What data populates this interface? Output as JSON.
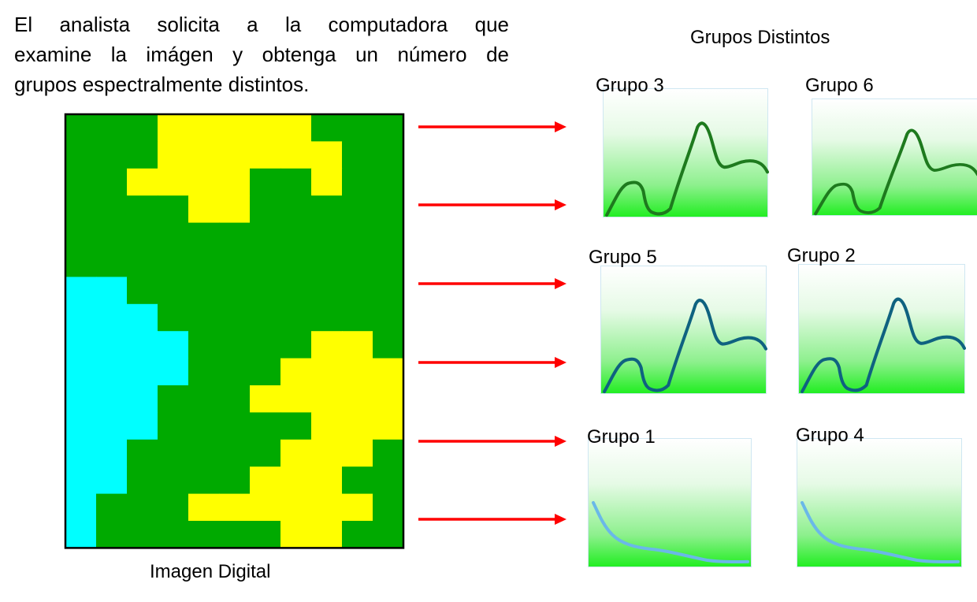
{
  "intro": {
    "line1": "El analista solicita a la computadora que",
    "line2": "examine la imágen y obtenga un número de",
    "line3": "grupos espectralmente distintos."
  },
  "image_caption": "Imagen Digital",
  "groups_title": "Grupos Distintos",
  "colors": {
    "green": "#00aa00",
    "yellow": "#ffff00",
    "cyan": "#00ffff",
    "arrow": "#ff0000",
    "curve_green": "#1e7a1e",
    "curve_teal": "#0f6280",
    "curve_blue": "#6ab8e8"
  },
  "pixel_legend": {
    "G": "green",
    "Y": "yellow",
    "C": "cyan"
  },
  "pixel_rows": [
    "GGGYYYYYGGG",
    "GGGYYYYYYGG",
    "GGYYYYGGYGG",
    "GGGGYYGGGGG",
    "GGGGGGGGGGG",
    "GGGGGGGGGGG",
    "CCGGGGGGGGG",
    "CCCGGGGGGGG",
    "CCCCGGGGYYG",
    "CCCCGGGYYYY",
    "CCCGGGYYYYY",
    "CCCGGGGGYYY",
    "CCGGGGGYYYG",
    "CCGGGGYYYGG",
    "CGGGYYYYYYG",
    "CGGGGGGYYGG"
  ],
  "groups": [
    {
      "label": "Grupo 3",
      "curve": "vegetation",
      "color": "curve_green"
    },
    {
      "label": "Grupo 6",
      "curve": "vegetation",
      "color": "curve_green"
    },
    {
      "label": "Grupo 5",
      "curve": "vegetation",
      "color": "curve_teal"
    },
    {
      "label": "Grupo 2",
      "curve": "vegetation",
      "color": "curve_teal"
    },
    {
      "label": "Grupo 1",
      "curve": "water",
      "color": "curve_blue"
    },
    {
      "label": "Grupo 4",
      "curve": "water",
      "color": "curve_blue"
    }
  ]
}
